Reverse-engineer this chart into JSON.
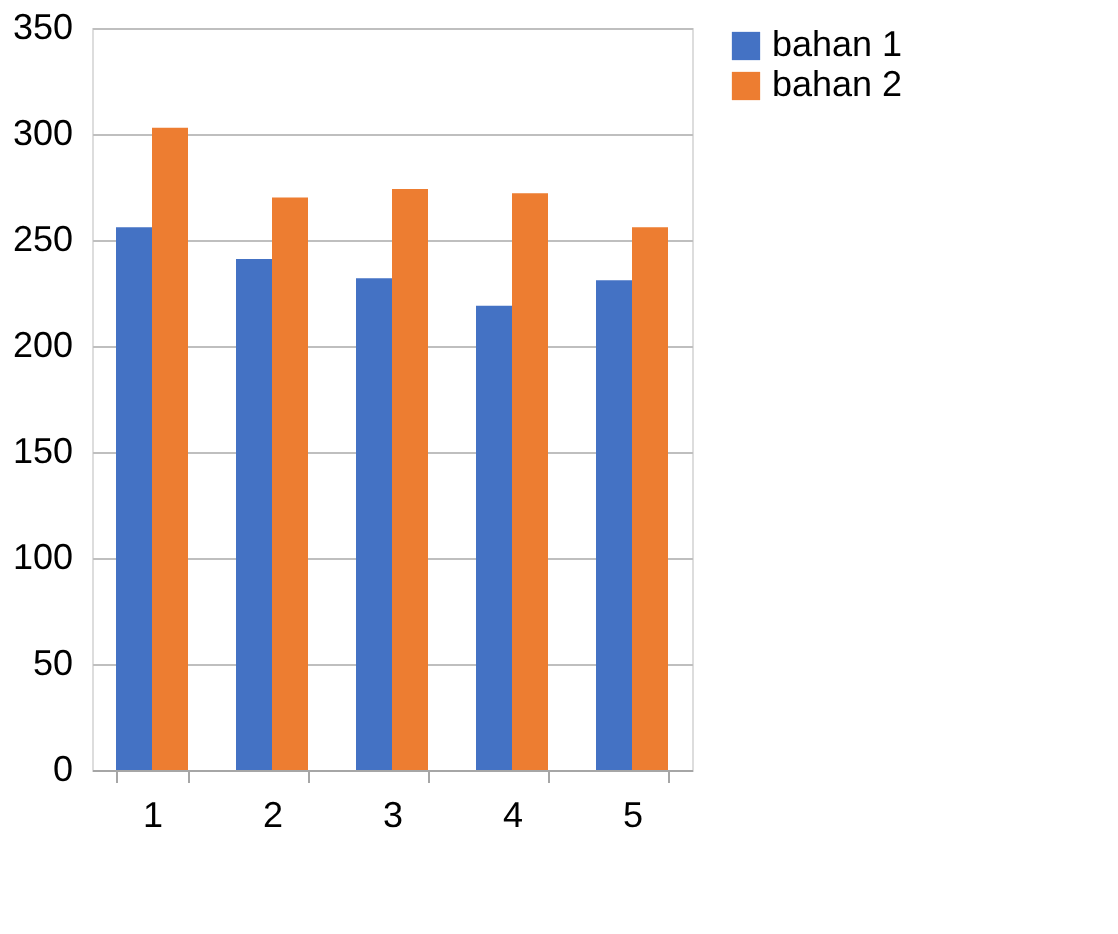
{
  "chart_data": {
    "type": "bar",
    "categories": [
      "1",
      "2",
      "3",
      "4",
      "5"
    ],
    "series": [
      {
        "name": "bahan 1",
        "color": "#4472c4",
        "values": [
          256,
          241,
          232,
          219,
          231
        ]
      },
      {
        "name": "bahan 2",
        "color": "#ed7d31",
        "values": [
          303,
          270,
          274,
          272,
          256
        ]
      }
    ],
    "ylim": [
      0,
      350
    ],
    "yticks": [
      0,
      50,
      100,
      150,
      200,
      250,
      300,
      350
    ],
    "grid": "y",
    "legend": "right"
  }
}
